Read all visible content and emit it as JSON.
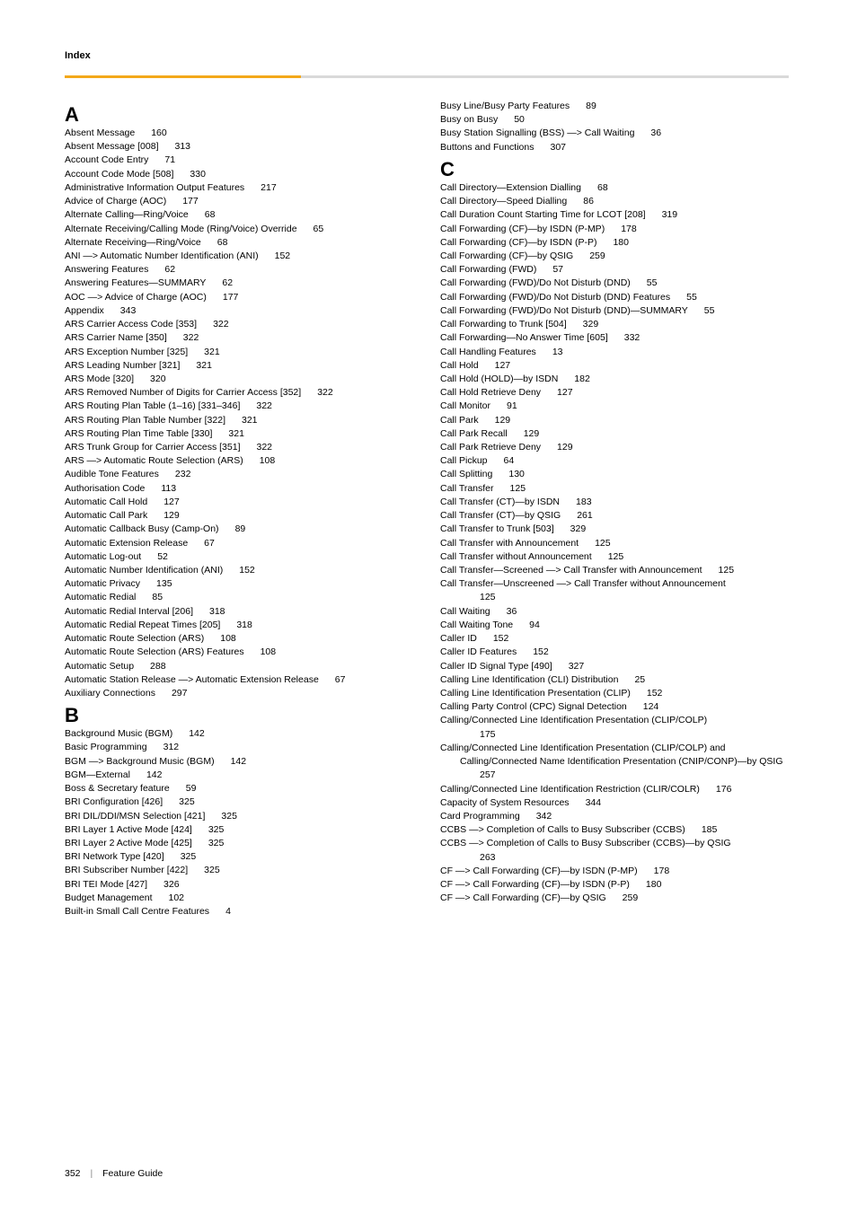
{
  "header": {
    "label": "Index"
  },
  "footer": {
    "page": "352",
    "title": "Feature Guide"
  },
  "left": {
    "sections": [
      {
        "letter": "A",
        "entries": [
          {
            "t": "Absent Message",
            "p": "160"
          },
          {
            "t": "Absent Message [008]",
            "p": "313"
          },
          {
            "t": "Account Code Entry",
            "p": "71"
          },
          {
            "t": "Account Code Mode [508]",
            "p": "330"
          },
          {
            "t": "Administrative Information Output Features",
            "p": "217"
          },
          {
            "t": "Advice of Charge (AOC)",
            "p": "177"
          },
          {
            "t": "Alternate Calling—Ring/Voice",
            "p": "68"
          },
          {
            "t": "Alternate Receiving/Calling Mode (Ring/Voice) Override",
            "p": "65"
          },
          {
            "t": "Alternate Receiving—Ring/Voice",
            "p": "68"
          },
          {
            "t": "ANI —> Automatic Number Identification (ANI)",
            "p": "152"
          },
          {
            "t": "Answering Features",
            "p": "62"
          },
          {
            "t": "Answering Features—SUMMARY",
            "p": "62"
          },
          {
            "t": "AOC —> Advice of Charge (AOC)",
            "p": "177"
          },
          {
            "t": "Appendix",
            "p": "343"
          },
          {
            "t": "ARS Carrier Access Code [353]",
            "p": "322"
          },
          {
            "t": "ARS Carrier Name [350]",
            "p": "322"
          },
          {
            "t": "ARS Exception Number [325]",
            "p": "321"
          },
          {
            "t": "ARS Leading Number [321]",
            "p": "321"
          },
          {
            "t": "ARS Mode [320]",
            "p": "320"
          },
          {
            "t": "ARS Removed Number of Digits for Carrier Access [352]",
            "p": "322"
          },
          {
            "t": "ARS Routing Plan Table (1–16) [331–346]",
            "p": "322"
          },
          {
            "t": "ARS Routing Plan Table Number [322]",
            "p": "321"
          },
          {
            "t": "ARS Routing Plan Time Table [330]",
            "p": "321"
          },
          {
            "t": "ARS Trunk Group for Carrier Access [351]",
            "p": "322"
          },
          {
            "t": "ARS —> Automatic Route Selection (ARS)",
            "p": "108"
          },
          {
            "t": "Audible Tone Features",
            "p": "232"
          },
          {
            "t": "Authorisation Code",
            "p": "113"
          },
          {
            "t": "Automatic Call Hold",
            "p": "127"
          },
          {
            "t": "Automatic Call Park",
            "p": "129"
          },
          {
            "t": "Automatic Callback Busy (Camp-On)",
            "p": "89"
          },
          {
            "t": "Automatic Extension Release",
            "p": "67"
          },
          {
            "t": "Automatic Log-out",
            "p": "52"
          },
          {
            "t": "Automatic Number Identification (ANI)",
            "p": "152"
          },
          {
            "t": "Automatic Privacy",
            "p": "135"
          },
          {
            "t": "Automatic Redial",
            "p": "85"
          },
          {
            "t": "Automatic Redial Interval [206]",
            "p": "318"
          },
          {
            "t": "Automatic Redial Repeat Times [205]",
            "p": "318"
          },
          {
            "t": "Automatic Route Selection (ARS)",
            "p": "108"
          },
          {
            "t": "Automatic Route Selection (ARS) Features",
            "p": "108"
          },
          {
            "t": "Automatic Setup",
            "p": "288"
          },
          {
            "t": "Automatic Station Release —> Automatic Extension Release",
            "p": "67"
          },
          {
            "t": "Auxiliary Connections",
            "p": "297"
          }
        ]
      },
      {
        "letter": "B",
        "entries": [
          {
            "t": "Background Music (BGM)",
            "p": "142"
          },
          {
            "t": "Basic Programming",
            "p": "312"
          },
          {
            "t": "BGM —> Background Music (BGM)",
            "p": "142"
          },
          {
            "t": "BGM—External",
            "p": "142"
          },
          {
            "t": "Boss & Secretary feature",
            "p": "59"
          },
          {
            "t": "BRI Configuration [426]",
            "p": "325"
          },
          {
            "t": "BRI DIL/DDI/MSN Selection [421]",
            "p": "325"
          },
          {
            "t": "BRI Layer 1 Active Mode [424]",
            "p": "325"
          },
          {
            "t": "BRI Layer 2 Active Mode [425]",
            "p": "325"
          },
          {
            "t": "BRI Network Type [420]",
            "p": "325"
          },
          {
            "t": "BRI Subscriber Number [422]",
            "p": "325"
          },
          {
            "t": "BRI TEI Mode [427]",
            "p": "326"
          },
          {
            "t": "Budget Management",
            "p": "102"
          },
          {
            "t": "Built-in Small Call Centre Features",
            "p": "4"
          }
        ]
      }
    ]
  },
  "right": {
    "pre_entries": [
      {
        "t": "Busy Line/Busy Party Features",
        "p": "89"
      },
      {
        "t": "Busy on Busy",
        "p": "50"
      },
      {
        "t": "Busy Station Signalling (BSS) —> Call Waiting",
        "p": "36"
      },
      {
        "t": "Buttons and Functions",
        "p": "307"
      }
    ],
    "sections": [
      {
        "letter": "C",
        "entries": [
          {
            "t": "Call Directory—Extension Dialling",
            "p": "68"
          },
          {
            "t": "Call Directory—Speed Dialling",
            "p": "86"
          },
          {
            "t": "Call Duration Count Starting Time for LCOT [208]",
            "p": "319"
          },
          {
            "t": "Call Forwarding (CF)—by ISDN (P-MP)",
            "p": "178"
          },
          {
            "t": "Call Forwarding (CF)—by ISDN (P-P)",
            "p": "180"
          },
          {
            "t": "Call Forwarding (CF)—by QSIG",
            "p": "259"
          },
          {
            "t": "Call Forwarding (FWD)",
            "p": "57"
          },
          {
            "t": "Call Forwarding (FWD)/Do Not Disturb (DND)",
            "p": "55"
          },
          {
            "t": "Call Forwarding (FWD)/Do Not Disturb (DND) Features",
            "p": "55"
          },
          {
            "t": "Call Forwarding (FWD)/Do Not Disturb (DND)—SUMMARY",
            "p": "55"
          },
          {
            "t": "Call Forwarding to Trunk [504]",
            "p": "329"
          },
          {
            "t": "Call Forwarding—No Answer Time [605]",
            "p": "332"
          },
          {
            "t": "Call Handling Features",
            "p": "13"
          },
          {
            "t": "Call Hold",
            "p": "127"
          },
          {
            "t": "Call Hold (HOLD)—by ISDN",
            "p": "182"
          },
          {
            "t": "Call Hold Retrieve Deny",
            "p": "127"
          },
          {
            "t": "Call Monitor",
            "p": "91"
          },
          {
            "t": "Call Park",
            "p": "129"
          },
          {
            "t": "Call Park Recall",
            "p": "129"
          },
          {
            "t": "Call Park Retrieve Deny",
            "p": "129"
          },
          {
            "t": "Call Pickup",
            "p": "64"
          },
          {
            "t": "Call Splitting",
            "p": "130"
          },
          {
            "t": "Call Transfer",
            "p": "125"
          },
          {
            "t": "Call Transfer (CT)—by ISDN",
            "p": "183"
          },
          {
            "t": "Call Transfer (CT)—by QSIG",
            "p": "261"
          },
          {
            "t": "Call Transfer to Trunk [503]",
            "p": "329"
          },
          {
            "t": "Call Transfer with Announcement",
            "p": "125"
          },
          {
            "t": "Call Transfer without Announcement",
            "p": "125"
          },
          {
            "t": "Call Transfer—Screened —> Call Transfer with Announcement",
            "p": "125"
          },
          {
            "t": "Call Transfer—Unscreened —> Call Transfer without Announcement",
            "p": "125",
            "wrap": true
          },
          {
            "t": "Call Waiting",
            "p": "36"
          },
          {
            "t": "Call Waiting Tone",
            "p": "94"
          },
          {
            "t": "Caller ID",
            "p": "152"
          },
          {
            "t": "Caller ID Features",
            "p": "152"
          },
          {
            "t": "Caller ID Signal Type [490]",
            "p": "327"
          },
          {
            "t": "Calling Line Identification (CLI) Distribution",
            "p": "25"
          },
          {
            "t": "Calling Line Identification Presentation (CLIP)",
            "p": "152"
          },
          {
            "t": "Calling Party Control (CPC) Signal Detection",
            "p": "124"
          },
          {
            "t": "Calling/Connected Line Identification Presentation (CLIP/COLP)",
            "p": "175",
            "wrap": true
          },
          {
            "t": "Calling/Connected Line Identification Presentation (CLIP/COLP) and Calling/Connected Name Identification Presentation (CNIP/CONP)—by QSIG",
            "p": "257",
            "wrap": true
          },
          {
            "t": "Calling/Connected Line Identification Restriction (CLIR/COLR)",
            "p": "176"
          },
          {
            "t": "Capacity of System Resources",
            "p": "344"
          },
          {
            "t": "Card Programming",
            "p": "342"
          },
          {
            "t": "CCBS —> Completion of Calls to Busy Subscriber (CCBS)",
            "p": "185"
          },
          {
            "t": "CCBS —> Completion of Calls to Busy Subscriber (CCBS)—by QSIG",
            "p": "263",
            "wrap": true
          },
          {
            "t": "CF —> Call Forwarding (CF)—by ISDN (P-MP)",
            "p": "178"
          },
          {
            "t": "CF —> Call Forwarding (CF)—by ISDN (P-P)",
            "p": "180"
          },
          {
            "t": "CF —> Call Forwarding (CF)—by QSIG",
            "p": "259"
          }
        ]
      }
    ]
  }
}
